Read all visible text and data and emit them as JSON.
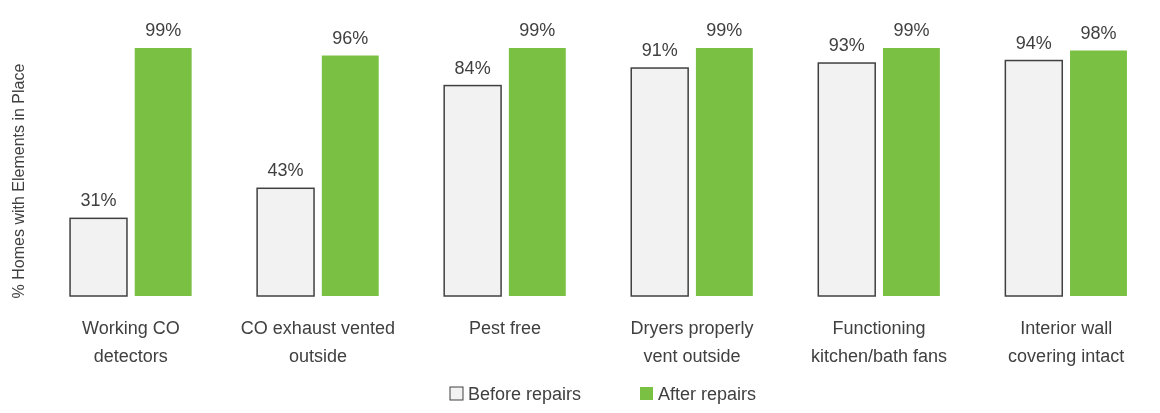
{
  "chart_data": {
    "type": "bar",
    "ylabel": "% Homes with Elements in Place",
    "categories": [
      "Working CO detectors",
      "CO exhaust vented outside",
      "Pest free",
      "Dryers properly vent outside",
      "Functioning kitchen/bath fans",
      "Interior wall covering intact"
    ],
    "series": [
      {
        "name": "Before repairs",
        "color": "#f2f2f2",
        "values": [
          31,
          43,
          84,
          91,
          93,
          94
        ],
        "value_labels": [
          "31%",
          "43%",
          "84%",
          "91%",
          "93%",
          "94%"
        ]
      },
      {
        "name": "After repairs",
        "color": "#7ac143",
        "values": [
          99,
          96,
          99,
          99,
          99,
          98
        ],
        "value_labels": [
          "99%",
          "96%",
          "99%",
          "99%",
          "99%",
          "98%"
        ]
      }
    ],
    "legend": "bottom"
  }
}
